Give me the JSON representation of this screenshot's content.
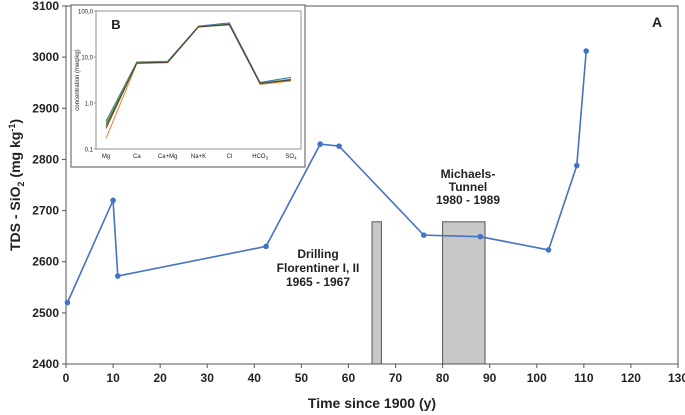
{
  "chart_data": [
    {
      "type": "line",
      "panel_label": "A",
      "xlabel": "Time since 1900 (y)",
      "ylabel_main": "TDS - SiO",
      "ylabel_sub": "2",
      "ylabel_unit_open": " (mg kg",
      "ylabel_unit_sup": "-1",
      "ylabel_unit_close": ")",
      "xlim": [
        0,
        130
      ],
      "ylim": [
        2400,
        3100
      ],
      "x_ticks": [
        0,
        10,
        20,
        30,
        40,
        50,
        60,
        70,
        80,
        90,
        100,
        110,
        120,
        130
      ],
      "y_ticks": [
        2400,
        2500,
        2600,
        2700,
        2800,
        2900,
        3000,
        3100
      ],
      "grid": false,
      "series": [
        {
          "color": "#4472C4",
          "points": [
            {
              "x": 0.3,
              "y": 2520
            },
            {
              "x": 10.0,
              "y": 2720
            },
            {
              "x": 11.0,
              "y": 2572
            },
            {
              "x": 42.5,
              "y": 2630
            },
            {
              "x": 54.0,
              "y": 2830
            },
            {
              "x": 58.0,
              "y": 2826
            },
            {
              "x": 76.0,
              "y": 2652
            },
            {
              "x": 88.0,
              "y": 2649
            },
            {
              "x": 102.5,
              "y": 2623
            },
            {
              "x": 108.5,
              "y": 2788
            },
            {
              "x": 110.5,
              "y": 3012
            }
          ]
        }
      ],
      "bars": [
        {
          "x_start": 65,
          "x_end": 67,
          "y_top": 2678,
          "fill": "#c8c8c8",
          "label_lines": [
            "Drilling",
            "Florentiner I, II",
            "1965 - 1967"
          ]
        },
        {
          "x_start": 80,
          "x_end": 89,
          "y_top": 2678,
          "fill": "#c8c8c8",
          "label_lines": [
            "Michaels-",
            "Tunnel",
            "1980 - 1989"
          ]
        }
      ]
    },
    {
      "type": "line",
      "panel_label": "B",
      "ylabel": "concentration (meq/kg)",
      "y_scale": "log",
      "ylim": [
        0.1,
        100
      ],
      "y_tick_labels": [
        "0,1",
        "1,0",
        "10,0",
        "100,0"
      ],
      "categories": [
        "Mg",
        "Ca",
        "Ca+Mg",
        "Na+K",
        "Cl",
        "HCO3",
        "SO4"
      ],
      "category_labels": [
        {
          "main": "Mg",
          "sub": ""
        },
        {
          "main": "Ca",
          "sub": ""
        },
        {
          "main": "Ca+Mg",
          "sub": ""
        },
        {
          "main": "Na+K",
          "sub": ""
        },
        {
          "main": "Cl",
          "sub": ""
        },
        {
          "main": "HCO",
          "sub": "3"
        },
        {
          "main": "SO",
          "sub": "4"
        }
      ],
      "series": [
        {
          "color": "#2E75B6",
          "values": [
            0.4,
            7.8,
            8.1,
            47,
            55,
            2.8,
            3.6
          ]
        },
        {
          "color": "#70AD47",
          "values": [
            0.36,
            7.6,
            7.9,
            46,
            52,
            2.7,
            3.3
          ]
        },
        {
          "color": "#7F6000",
          "values": [
            0.32,
            7.3,
            7.6,
            46,
            50,
            2.6,
            3.1
          ]
        },
        {
          "color": "#ED7D31",
          "values": [
            0.17,
            7.2,
            7.5,
            45,
            50,
            2.55,
            3.0
          ]
        },
        {
          "color": "#404040",
          "values": [
            0.28,
            7.4,
            7.7,
            45,
            51,
            2.65,
            3.2
          ]
        }
      ]
    }
  ]
}
